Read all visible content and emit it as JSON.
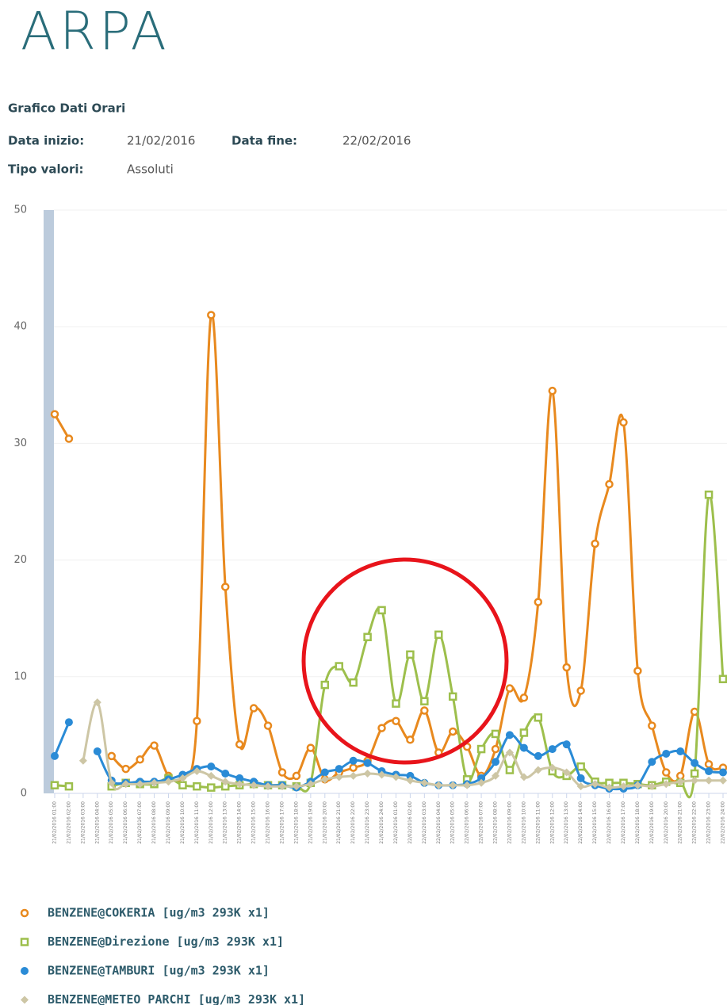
{
  "header": {
    "logo": "ARPA",
    "title": "Grafico Dati Orari",
    "start_label": "Data inizio:",
    "start_value": "21/02/2016",
    "end_label": "Data fine:",
    "end_value": "22/02/2016",
    "kind_label": "Tipo valori:",
    "kind_value": "Assoluti"
  },
  "chart_data": {
    "type": "line",
    "categories": [
      "21/02/2016 01:00",
      "21/02/2016 02:00",
      "21/02/2016 03:00",
      "21/02/2016 04:00",
      "21/02/2016 05:00",
      "21/02/2016 06:00",
      "21/02/2016 07:00",
      "21/02/2016 08:00",
      "21/02/2016 09:00",
      "21/02/2016 10:00",
      "21/02/2016 11:00",
      "21/02/2016 12:00",
      "21/02/2016 13:00",
      "21/02/2016 14:00",
      "21/02/2016 15:00",
      "21/02/2016 16:00",
      "21/02/2016 17:00",
      "21/02/2016 18:00",
      "21/02/2016 19:00",
      "21/02/2016 20:00",
      "21/02/2016 21:00",
      "21/02/2016 22:00",
      "21/02/2016 23:00",
      "21/02/2016 24:00",
      "22/02/2016 01:00",
      "22/02/2016 02:00",
      "22/02/2016 03:00",
      "22/02/2016 04:00",
      "22/02/2016 05:00",
      "22/02/2016 06:00",
      "22/02/2016 07:00",
      "22/02/2016 08:00",
      "22/02/2016 09:00",
      "22/02/2016 10:00",
      "22/02/2016 11:00",
      "22/02/2016 12:00",
      "22/02/2016 13:00",
      "22/02/2016 14:00",
      "22/02/2016 15:00",
      "22/02/2016 16:00",
      "22/02/2016 17:00",
      "22/02/2016 18:00",
      "22/02/2016 19:00",
      "22/02/2016 20:00",
      "22/02/2016 21:00",
      "22/02/2016 22:00",
      "22/02/2016 23:00",
      "22/02/2016 24:00"
    ],
    "series": [
      {
        "name": "BENZENE@COKERIA [ug/m3 293K x1]",
        "color": "#e8891e",
        "marker": "circle",
        "values": [
          32.5,
          30.4,
          null,
          null,
          3.2,
          2.1,
          2.9,
          4.1,
          1.5,
          1.5,
          6.2,
          41,
          17.7,
          4.2,
          7.3,
          5.8,
          1.8,
          1.5,
          3.9,
          1.2,
          1.8,
          2.2,
          2.8,
          5.6,
          6.2,
          4.6,
          7.1,
          3.5,
          5.3,
          4.0,
          1.5,
          3.8,
          9.0,
          8.2,
          16.4,
          34.5,
          10.8,
          8.8,
          21.4,
          26.5,
          31.8,
          10.5,
          5.8,
          1.8,
          1.5,
          7.0,
          2.5,
          2.2
        ]
      },
      {
        "name": "BENZENE@Direzione [ug/m3 293K x1]",
        "color": "#9dbf4c",
        "marker": "square",
        "values": [
          0.7,
          0.6,
          null,
          null,
          0.6,
          0.9,
          0.8,
          0.8,
          1.3,
          0.7,
          0.6,
          0.5,
          0.6,
          0.7,
          0.8,
          0.7,
          0.7,
          0.6,
          0.9,
          9.3,
          10.9,
          9.5,
          13.4,
          15.7,
          7.7,
          11.9,
          7.9,
          13.6,
          8.3,
          1.2,
          3.8,
          5.1,
          2.0,
          5.2,
          6.5,
          1.9,
          1.5,
          2.3,
          1.0,
          0.9,
          0.9,
          0.8,
          0.7,
          1.0,
          0.9,
          1.7,
          25.6,
          9.8
        ]
      },
      {
        "name": "BENZENE@TAMBURI [ug/m3 293K x1]",
        "color": "#2a8bd6",
        "marker": "dot",
        "values": [
          3.2,
          6.1,
          null,
          3.6,
          1.1,
          0.9,
          1.0,
          1.0,
          1.2,
          1.6,
          2.1,
          2.3,
          1.7,
          1.3,
          1.0,
          0.7,
          0.7,
          0.5,
          1.0,
          1.8,
          2.1,
          2.8,
          2.6,
          1.9,
          1.6,
          1.5,
          0.9,
          0.7,
          0.7,
          0.8,
          1.3,
          2.7,
          5.0,
          3.9,
          3.2,
          3.8,
          4.2,
          1.3,
          0.7,
          0.4,
          0.4,
          0.7,
          2.7,
          3.4,
          3.6,
          2.6,
          1.9,
          1.8
        ]
      },
      {
        "name": "BENZENE@METEO PARCHI [ug/m3 293K x1]",
        "color": "#cdc6a5",
        "marker": "diamond",
        "values": [
          null,
          null,
          2.8,
          7.8,
          0.9,
          0.8,
          0.8,
          0.9,
          1.0,
          1.3,
          1.9,
          1.5,
          1.0,
          0.8,
          0.7,
          0.6,
          0.6,
          0.6,
          0.8,
          1.2,
          1.4,
          1.5,
          1.7,
          1.6,
          1.4,
          1.1,
          0.9,
          0.7,
          0.7,
          0.7,
          0.9,
          1.5,
          3.5,
          1.4,
          2.0,
          2.2,
          1.8,
          0.6,
          0.8,
          0.5,
          0.6,
          0.7,
          0.6,
          0.8,
          1.0,
          1.1,
          1.1,
          1.1
        ]
      }
    ],
    "ylim": [
      0,
      50
    ],
    "yticks": [
      0,
      10,
      20,
      30,
      40,
      50
    ],
    "grid": true
  }
}
